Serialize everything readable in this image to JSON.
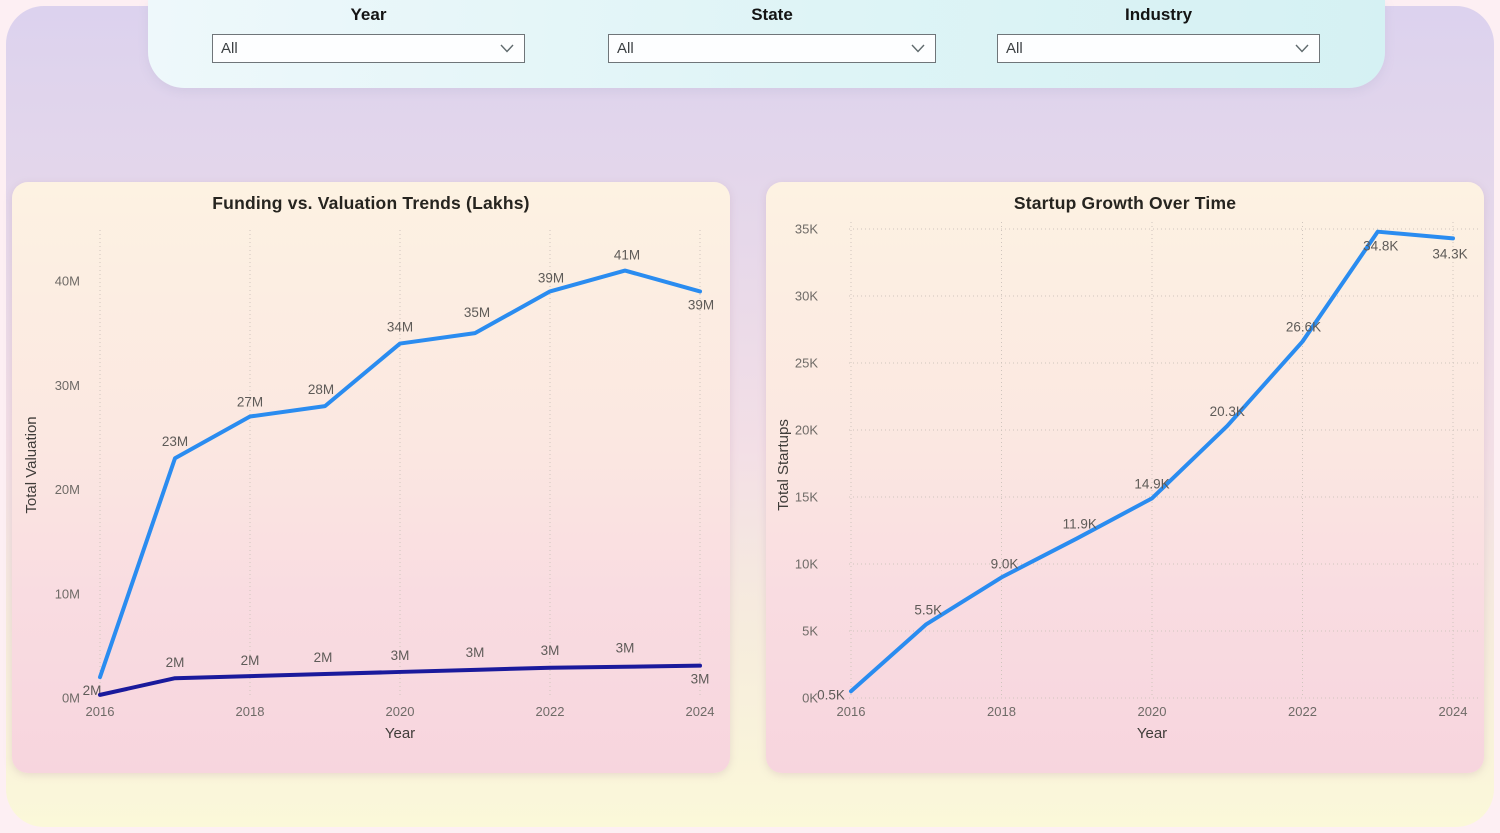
{
  "filters": {
    "groups": [
      {
        "label": "Year",
        "value": "All"
      },
      {
        "label": "State",
        "value": "All"
      },
      {
        "label": "Industry",
        "value": "All"
      }
    ]
  },
  "chart_data": [
    {
      "type": "line",
      "title": "Funding vs. Valuation Trends (Lakhs)",
      "xlabel": "Year",
      "ylabel": "Total Valuation",
      "x": [
        2016,
        2017,
        2018,
        2019,
        2020,
        2021,
        2022,
        2023,
        2024
      ],
      "x_tick_labels": [
        "2016",
        "2018",
        "2020",
        "2022",
        "2024"
      ],
      "y_ticks": [
        {
          "value": 0,
          "label": "0M"
        },
        {
          "value": 10,
          "label": "10M"
        },
        {
          "value": 20,
          "label": "20M"
        },
        {
          "value": 30,
          "label": "30M"
        },
        {
          "value": 40,
          "label": "40M"
        }
      ],
      "ylim": [
        0,
        45
      ],
      "grid": {
        "vertical": true,
        "horizontal": false
      },
      "series": [
        {
          "name": "total-valuation",
          "color": "#2a8cf0",
          "values": [
            2,
            23,
            27,
            28,
            34,
            35,
            39,
            41,
            39
          ],
          "labels": [
            "2M",
            "23M",
            "27M",
            "28M",
            "34M",
            "35M",
            "39M",
            "41M",
            "39M"
          ],
          "label_offsets": [
            [
              -8,
              18
            ],
            [
              0,
              -12
            ],
            [
              0,
              -10
            ],
            [
              -4,
              -12
            ],
            [
              0,
              -12
            ],
            [
              2,
              -16
            ],
            [
              1,
              -9
            ],
            [
              2,
              -11
            ],
            [
              1,
              18
            ]
          ]
        },
        {
          "name": "total-funding",
          "color": "#1a1a9c",
          "values": [
            0.3,
            1.9,
            2.1,
            2.3,
            2.5,
            2.7,
            2.9,
            3.0,
            3.1
          ],
          "labels": [
            "",
            "2M",
            "2M",
            "2M",
            "3M",
            "3M",
            "3M",
            "3M",
            "3M"
          ],
          "label_offsets": [
            [
              0,
              0
            ],
            [
              0,
              -11
            ],
            [
              0,
              -11
            ],
            [
              -2,
              -12
            ],
            [
              0,
              -12
            ],
            [
              0,
              -13
            ],
            [
              0,
              -13
            ],
            [
              0,
              -14
            ],
            [
              0,
              18
            ]
          ]
        }
      ]
    },
    {
      "type": "line",
      "title": "Startup Growth Over Time",
      "xlabel": "Year",
      "ylabel": "Total Startups",
      "x": [
        2016,
        2017,
        2018,
        2019,
        2020,
        2021,
        2022,
        2023,
        2024
      ],
      "x_tick_labels": [
        "2016",
        "2018",
        "2020",
        "2022",
        "2024"
      ],
      "y_ticks": [
        {
          "value": 0,
          "label": "0K"
        },
        {
          "value": 5,
          "label": "5K"
        },
        {
          "value": 10,
          "label": "10K"
        },
        {
          "value": 15,
          "label": "15K"
        },
        {
          "value": 20,
          "label": "20K"
        },
        {
          "value": 25,
          "label": "25K"
        },
        {
          "value": 30,
          "label": "30K"
        },
        {
          "value": 35,
          "label": "35K"
        }
      ],
      "ylim": [
        0,
        35.5
      ],
      "grid": {
        "vertical": true,
        "horizontal": true
      },
      "series": [
        {
          "name": "total-startups",
          "color": "#2a8cf0",
          "values": [
            0.5,
            5.5,
            9.0,
            11.9,
            14.9,
            20.3,
            26.6,
            34.8,
            34.3
          ],
          "labels": [
            "0.5K",
            "5.5K",
            "9.0K",
            "11.9K",
            "14.9K",
            "20.3K",
            "26.6K",
            "34.8K",
            "34.3K"
          ],
          "label_offsets": [
            [
              -20,
              8
            ],
            [
              2,
              -10
            ],
            [
              3,
              -9
            ],
            [
              3,
              -10
            ],
            [
              0,
              -10
            ],
            [
              0,
              -10
            ],
            [
              1,
              -10
            ],
            [
              3,
              19
            ],
            [
              -3,
              20
            ]
          ]
        }
      ]
    }
  ]
}
